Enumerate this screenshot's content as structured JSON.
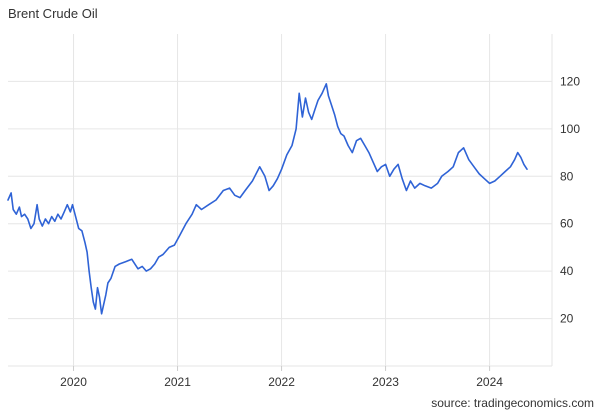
{
  "title": "Brent Crude Oil",
  "source": "source: tradingeconomics.com",
  "colors": {
    "line": "#2f63d6",
    "grid": "#e6e6e6",
    "text": "#333333"
  },
  "chart_data": {
    "type": "line",
    "title": "Brent Crude Oil",
    "xlabel": "",
    "ylabel": "",
    "xlim": [
      2019.37,
      2024.6
    ],
    "ylim": [
      0,
      140
    ],
    "yticks": [
      20,
      40,
      60,
      80,
      100,
      120
    ],
    "xticks": [
      2020,
      2021,
      2022,
      2023,
      2024
    ],
    "xtick_labels": [
      "2020",
      "2021",
      "2022",
      "2023",
      "2024"
    ],
    "grid": true,
    "y_axis_side": "right",
    "series": [
      {
        "name": "",
        "x": [
          2019.37,
          2019.4,
          2019.42,
          2019.45,
          2019.48,
          2019.5,
          2019.53,
          2019.56,
          2019.59,
          2019.62,
          2019.65,
          2019.67,
          2019.7,
          2019.73,
          2019.76,
          2019.79,
          2019.82,
          2019.85,
          2019.88,
          2019.91,
          2019.94,
          2019.97,
          2019.99,
          2020.02,
          2020.05,
          2020.08,
          2020.11,
          2020.13,
          2020.15,
          2020.17,
          2020.19,
          2020.21,
          2020.23,
          2020.25,
          2020.27,
          2020.29,
          2020.31,
          2020.33,
          2020.36,
          2020.4,
          2020.44,
          2020.5,
          2020.56,
          2020.62,
          2020.66,
          2020.7,
          2020.74,
          2020.78,
          2020.82,
          2020.86,
          2020.92,
          2020.97,
          2021.02,
          2021.08,
          2021.14,
          2021.18,
          2021.23,
          2021.3,
          2021.37,
          2021.44,
          2021.5,
          2021.55,
          2021.6,
          2021.65,
          2021.72,
          2021.79,
          2021.84,
          2021.88,
          2021.92,
          2021.96,
          2022.0,
          2022.05,
          2022.1,
          2022.14,
          2022.17,
          2022.2,
          2022.23,
          2022.26,
          2022.29,
          2022.32,
          2022.35,
          2022.39,
          2022.43,
          2022.45,
          2022.48,
          2022.51,
          2022.54,
          2022.57,
          2022.6,
          2022.64,
          2022.68,
          2022.72,
          2022.76,
          2022.8,
          2022.84,
          2022.88,
          2022.92,
          2022.96,
          2023.0,
          2023.04,
          2023.08,
          2023.12,
          2023.16,
          2023.2,
          2023.24,
          2023.28,
          2023.33,
          2023.38,
          2023.44,
          2023.5,
          2023.54,
          2023.6,
          2023.65,
          2023.7,
          2023.75,
          2023.8,
          2023.85,
          2023.9,
          2023.95,
          2024.0,
          2024.05,
          2024.1,
          2024.15,
          2024.2,
          2024.24,
          2024.27,
          2024.3,
          2024.33,
          2024.36
        ],
        "y": [
          70,
          73,
          66,
          64,
          67,
          63,
          64,
          62,
          58,
          60,
          68,
          62,
          59,
          62,
          60,
          63,
          61,
          64,
          62,
          65,
          68,
          65,
          68,
          63,
          58,
          57,
          52,
          48,
          40,
          33,
          27,
          24,
          33,
          29,
          22,
          26,
          30,
          35,
          37,
          42,
          43,
          44,
          45,
          41,
          42,
          40,
          41,
          43,
          46,
          47,
          50,
          51,
          55,
          60,
          64,
          68,
          66,
          68,
          70,
          74,
          75,
          72,
          71,
          74,
          78,
          84,
          80,
          74,
          76,
          79,
          83,
          89,
          93,
          100,
          115,
          105,
          113,
          107,
          104,
          108,
          112,
          115,
          119,
          114,
          110,
          106,
          101,
          98,
          97,
          93,
          90,
          95,
          96,
          93,
          90,
          86,
          82,
          84,
          85,
          80,
          83,
          85,
          79,
          74,
          78,
          75,
          77,
          76,
          75,
          77,
          80,
          82,
          84,
          90,
          92,
          87,
          84,
          81,
          79,
          77,
          78,
          80,
          82,
          84,
          87,
          90,
          88,
          85,
          83
        ]
      }
    ]
  }
}
